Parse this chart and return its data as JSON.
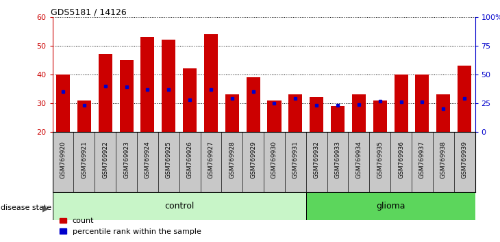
{
  "title": "GDS5181 / 14126",
  "samples": [
    "GSM769920",
    "GSM769921",
    "GSM769922",
    "GSM769923",
    "GSM769924",
    "GSM769925",
    "GSM769926",
    "GSM769927",
    "GSM769928",
    "GSM769929",
    "GSM769930",
    "GSM769931",
    "GSM769932",
    "GSM769933",
    "GSM769934",
    "GSM769935",
    "GSM769936",
    "GSM769937",
    "GSM769938",
    "GSM769939"
  ],
  "counts": [
    40,
    31,
    47,
    45,
    53,
    52,
    42,
    54,
    33,
    39,
    31,
    33,
    32,
    29,
    33,
    31,
    40,
    40,
    33,
    43
  ],
  "percentile_ranks": [
    35,
    23,
    40,
    39,
    37,
    37,
    28,
    37,
    29,
    35,
    25,
    29,
    23,
    23,
    24,
    27,
    26,
    26,
    20,
    29
  ],
  "group_labels": [
    "control",
    "glioma"
  ],
  "group_counts": [
    12,
    8
  ],
  "ctrl_color": "#c8f5c8",
  "glioma_color": "#5cd65c",
  "bar_color": "#cc0000",
  "marker_color": "#0000cc",
  "ylim": [
    20,
    60
  ],
  "yticks": [
    20,
    30,
    40,
    50,
    60
  ],
  "right_yticks": [
    0,
    25,
    50,
    75,
    100
  ],
  "right_ytick_labels": [
    "0",
    "25",
    "50",
    "75",
    "100%"
  ],
  "background_color": "#ffffff",
  "xtick_bg_color": "#c8c8c8",
  "legend_count_label": "count",
  "legend_pct_label": "percentile rank within the sample"
}
